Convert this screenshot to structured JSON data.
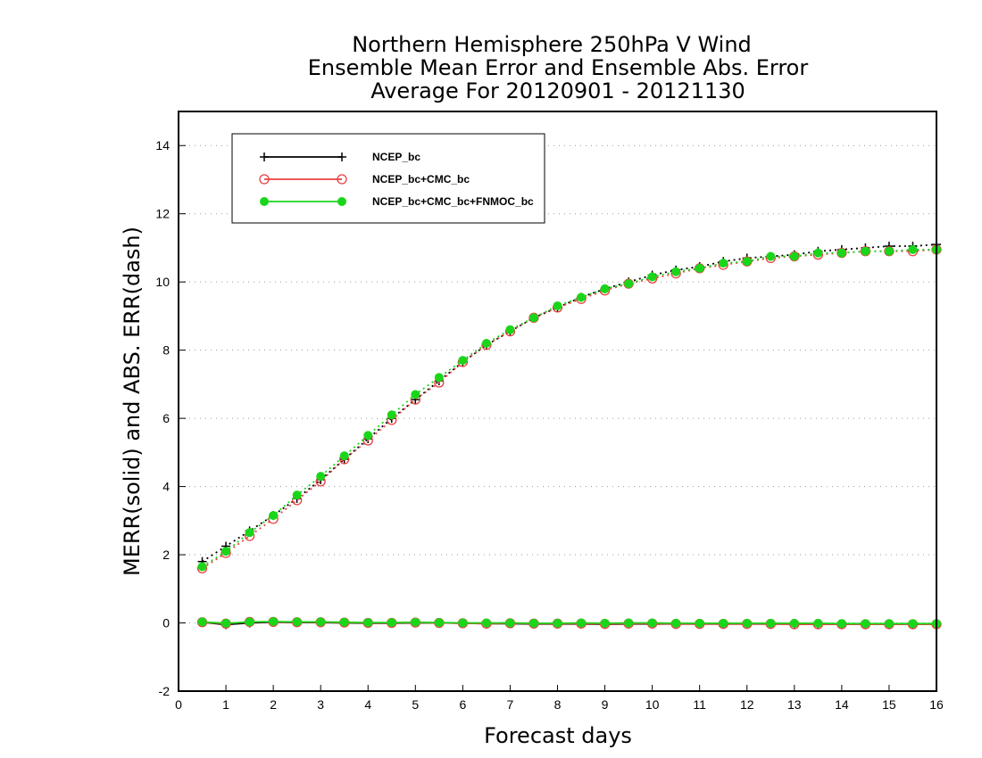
{
  "chart_data": {
    "type": "line",
    "title": [
      "Northern Hemisphere 250hPa V Wind",
      "Ensemble Mean Error and Ensemble Abs. Error",
      "Average For 20120901 - 20121130"
    ],
    "xlabel": "Forecast days",
    "ylabel": "MERR(solid) and ABS. ERR(dash)",
    "xlim": [
      0,
      16
    ],
    "ylim": [
      -2,
      15
    ],
    "xticks": [
      0,
      1,
      2,
      3,
      4,
      5,
      6,
      7,
      8,
      9,
      10,
      11,
      12,
      13,
      14,
      15,
      16
    ],
    "yticks": [
      -2,
      0,
      2,
      4,
      6,
      8,
      10,
      12,
      14
    ],
    "grid": "horizontal dotted",
    "legend_position": "top-left",
    "x": [
      0.5,
      1,
      1.5,
      2,
      2.5,
      3,
      3.5,
      4,
      4.5,
      5,
      5.5,
      6,
      6.5,
      7,
      7.5,
      8,
      8.5,
      9,
      9.5,
      10,
      10.5,
      11,
      11.5,
      12,
      12.5,
      13,
      13.5,
      14,
      14.5,
      15,
      15.5,
      16
    ],
    "series": [
      {
        "name": "NCEP_bc",
        "color": "#000000",
        "marker": "plus",
        "merr": [
          0.02,
          -0.05,
          0.0,
          0.02,
          0.01,
          0.01,
          0.0,
          -0.01,
          -0.01,
          0.0,
          0.0,
          -0.01,
          -0.02,
          -0.02,
          -0.03,
          -0.03,
          -0.03,
          -0.04,
          -0.03,
          -0.03,
          -0.03,
          -0.03,
          -0.03,
          -0.03,
          -0.03,
          -0.03,
          -0.03,
          -0.03,
          -0.03,
          -0.03,
          -0.03,
          -0.03
        ],
        "abs_err": [
          1.8,
          2.25,
          2.7,
          3.15,
          3.65,
          4.2,
          4.8,
          5.4,
          6.0,
          6.55,
          7.1,
          7.65,
          8.15,
          8.55,
          8.95,
          9.25,
          9.55,
          9.8,
          10.0,
          10.2,
          10.35,
          10.45,
          10.6,
          10.7,
          10.75,
          10.8,
          10.9,
          10.95,
          11.0,
          11.05,
          11.05,
          11.1
        ]
      },
      {
        "name": "NCEP_bc+CMC_bc",
        "color": "#e84040",
        "marker": "open-circle",
        "merr": [
          0.02,
          -0.02,
          0.03,
          0.03,
          0.02,
          0.02,
          0.01,
          0.0,
          0.0,
          0.01,
          0.0,
          -0.01,
          -0.02,
          -0.01,
          -0.02,
          -0.02,
          -0.02,
          -0.03,
          -0.02,
          -0.02,
          -0.03,
          -0.03,
          -0.03,
          -0.03,
          -0.03,
          -0.04,
          -0.04,
          -0.04,
          -0.04,
          -0.04,
          -0.04,
          -0.04
        ],
        "abs_err": [
          1.6,
          2.05,
          2.55,
          3.05,
          3.6,
          4.15,
          4.8,
          5.35,
          5.95,
          6.55,
          7.05,
          7.65,
          8.15,
          8.55,
          8.95,
          9.25,
          9.5,
          9.75,
          9.95,
          10.1,
          10.25,
          10.4,
          10.5,
          10.6,
          10.7,
          10.75,
          10.8,
          10.85,
          10.9,
          10.9,
          10.9,
          10.95
        ]
      },
      {
        "name": "NCEP_bc+CMC_bc+FNMOC_bc",
        "color": "#1ad61a",
        "marker": "filled-circle",
        "merr": [
          0.03,
          -0.01,
          0.03,
          0.04,
          0.03,
          0.03,
          0.02,
          0.01,
          0.01,
          0.02,
          0.01,
          0.0,
          0.0,
          0.0,
          -0.01,
          -0.01,
          0.0,
          -0.01,
          0.0,
          0.0,
          -0.01,
          -0.01,
          -0.01,
          -0.01,
          -0.01,
          -0.01,
          -0.01,
          -0.02,
          -0.02,
          -0.02,
          -0.02,
          -0.02
        ],
        "abs_err": [
          1.65,
          2.1,
          2.65,
          3.15,
          3.75,
          4.3,
          4.9,
          5.5,
          6.1,
          6.7,
          7.2,
          7.7,
          8.2,
          8.6,
          8.95,
          9.3,
          9.55,
          9.8,
          9.95,
          10.15,
          10.3,
          10.4,
          10.55,
          10.6,
          10.75,
          10.75,
          10.85,
          10.85,
          10.9,
          10.9,
          10.95,
          10.95
        ]
      }
    ]
  }
}
